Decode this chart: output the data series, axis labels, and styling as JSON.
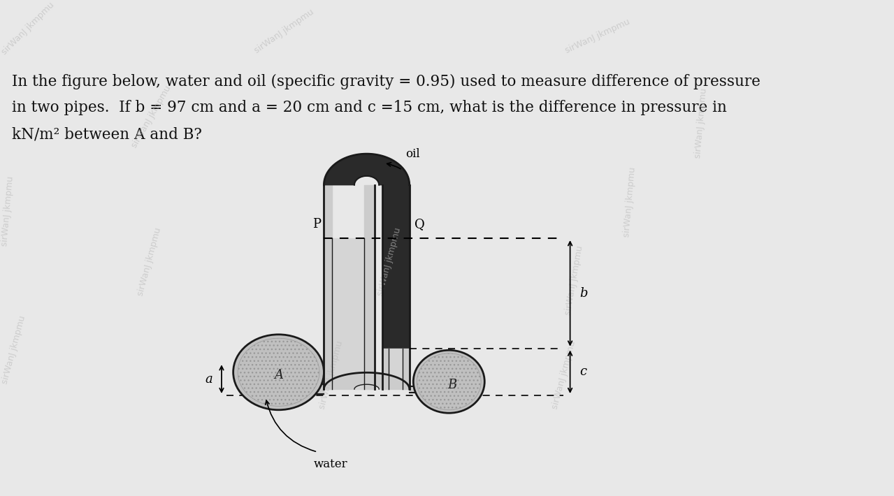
{
  "bg_color": "#e8e8e8",
  "text_color": "#111111",
  "watermark_text": "sirWanJ jkmpmu",
  "watermark_color": "#bbbbbb",
  "title_line1": "In the figure below, water and oil (specific gravity = 0.95) used to measure difference of pressure",
  "title_line2": "in two pipes.  If b = 97 cm and a = 20 cm and c =15 cm, what is the difference in pressure in",
  "title_line3": "kN/m² between A and B?",
  "oil_label": "oil",
  "water_label": "water",
  "label_P": "P",
  "label_Q": "Q",
  "label_A": "A",
  "label_B": "B",
  "label_a": "a",
  "label_b": "b",
  "label_c": "c",
  "tube_wall_color": "#1a1a1a",
  "oil_fill_color": "#2a2a2a",
  "water_fill_color": "#cccccc",
  "pipe_ellipse_fill": "#c0c0c0",
  "left_tube_fill": "#d5d5d5"
}
